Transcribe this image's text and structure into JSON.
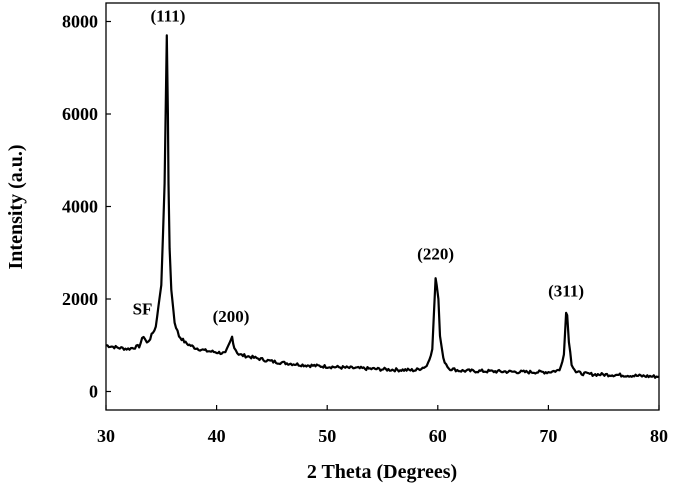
{
  "chart_data": {
    "type": "line",
    "xlabel": "2 Theta (Degrees)",
    "ylabel": "Intensity (a.u.)",
    "xlim": [
      30,
      80
    ],
    "ylim": [
      -400,
      8400
    ],
    "grid": false,
    "legend": "none",
    "line_color": "#000000",
    "x_ticks": [
      30,
      40,
      50,
      60,
      70,
      80
    ],
    "x_tick_labels": [
      "30",
      "40",
      "50",
      "60",
      "70",
      "80"
    ],
    "y_ticks": [
      0,
      2000,
      4000,
      6000,
      8000
    ],
    "y_tick_labels": [
      "0",
      "2000",
      "4000",
      "6000",
      "8000"
    ],
    "series": [
      {
        "x": [
          30,
          31,
          32,
          33,
          33.4,
          33.7,
          34,
          34.5,
          35,
          35.3,
          35.5,
          35.6,
          35.65,
          35.75,
          35.9,
          36.2,
          36.6,
          37.2,
          38,
          39,
          40,
          40.8,
          41.2,
          41.4,
          41.6,
          42,
          43,
          44,
          45,
          46,
          48,
          50,
          52,
          54,
          56,
          58,
          59,
          59.5,
          59.8,
          59.9,
          60.05,
          60.2,
          60.5,
          61,
          62,
          64,
          66,
          68,
          70,
          71,
          71.4,
          71.6,
          71.7,
          71.85,
          72.1,
          72.5,
          73,
          74,
          76,
          78,
          80
        ],
        "y": [
          1000,
          950,
          920,
          980,
          1200,
          1050,
          1150,
          1400,
          2300,
          4500,
          7700,
          6000,
          4500,
          3100,
          2200,
          1500,
          1200,
          1050,
          950,
          880,
          850,
          820,
          1050,
          1180,
          950,
          800,
          750,
          700,
          650,
          620,
          570,
          540,
          510,
          490,
          470,
          460,
          550,
          900,
          2450,
          2300,
          2000,
          1200,
          700,
          500,
          450,
          440,
          430,
          420,
          420,
          460,
          800,
          1700,
          1650,
          1100,
          600,
          420,
          390,
          370,
          360,
          340,
          320
        ]
      }
    ],
    "annotations": [
      {
        "text": "(111)",
        "x": 35.6,
        "y": 8000
      },
      {
        "text": "SF",
        "x": 33.3,
        "y": 1670
      },
      {
        "text": "(200)",
        "x": 41.3,
        "y": 1500
      },
      {
        "text": "(220)",
        "x": 59.8,
        "y": 2850
      },
      {
        "text": "(311)",
        "x": 71.6,
        "y": 2050
      }
    ]
  }
}
